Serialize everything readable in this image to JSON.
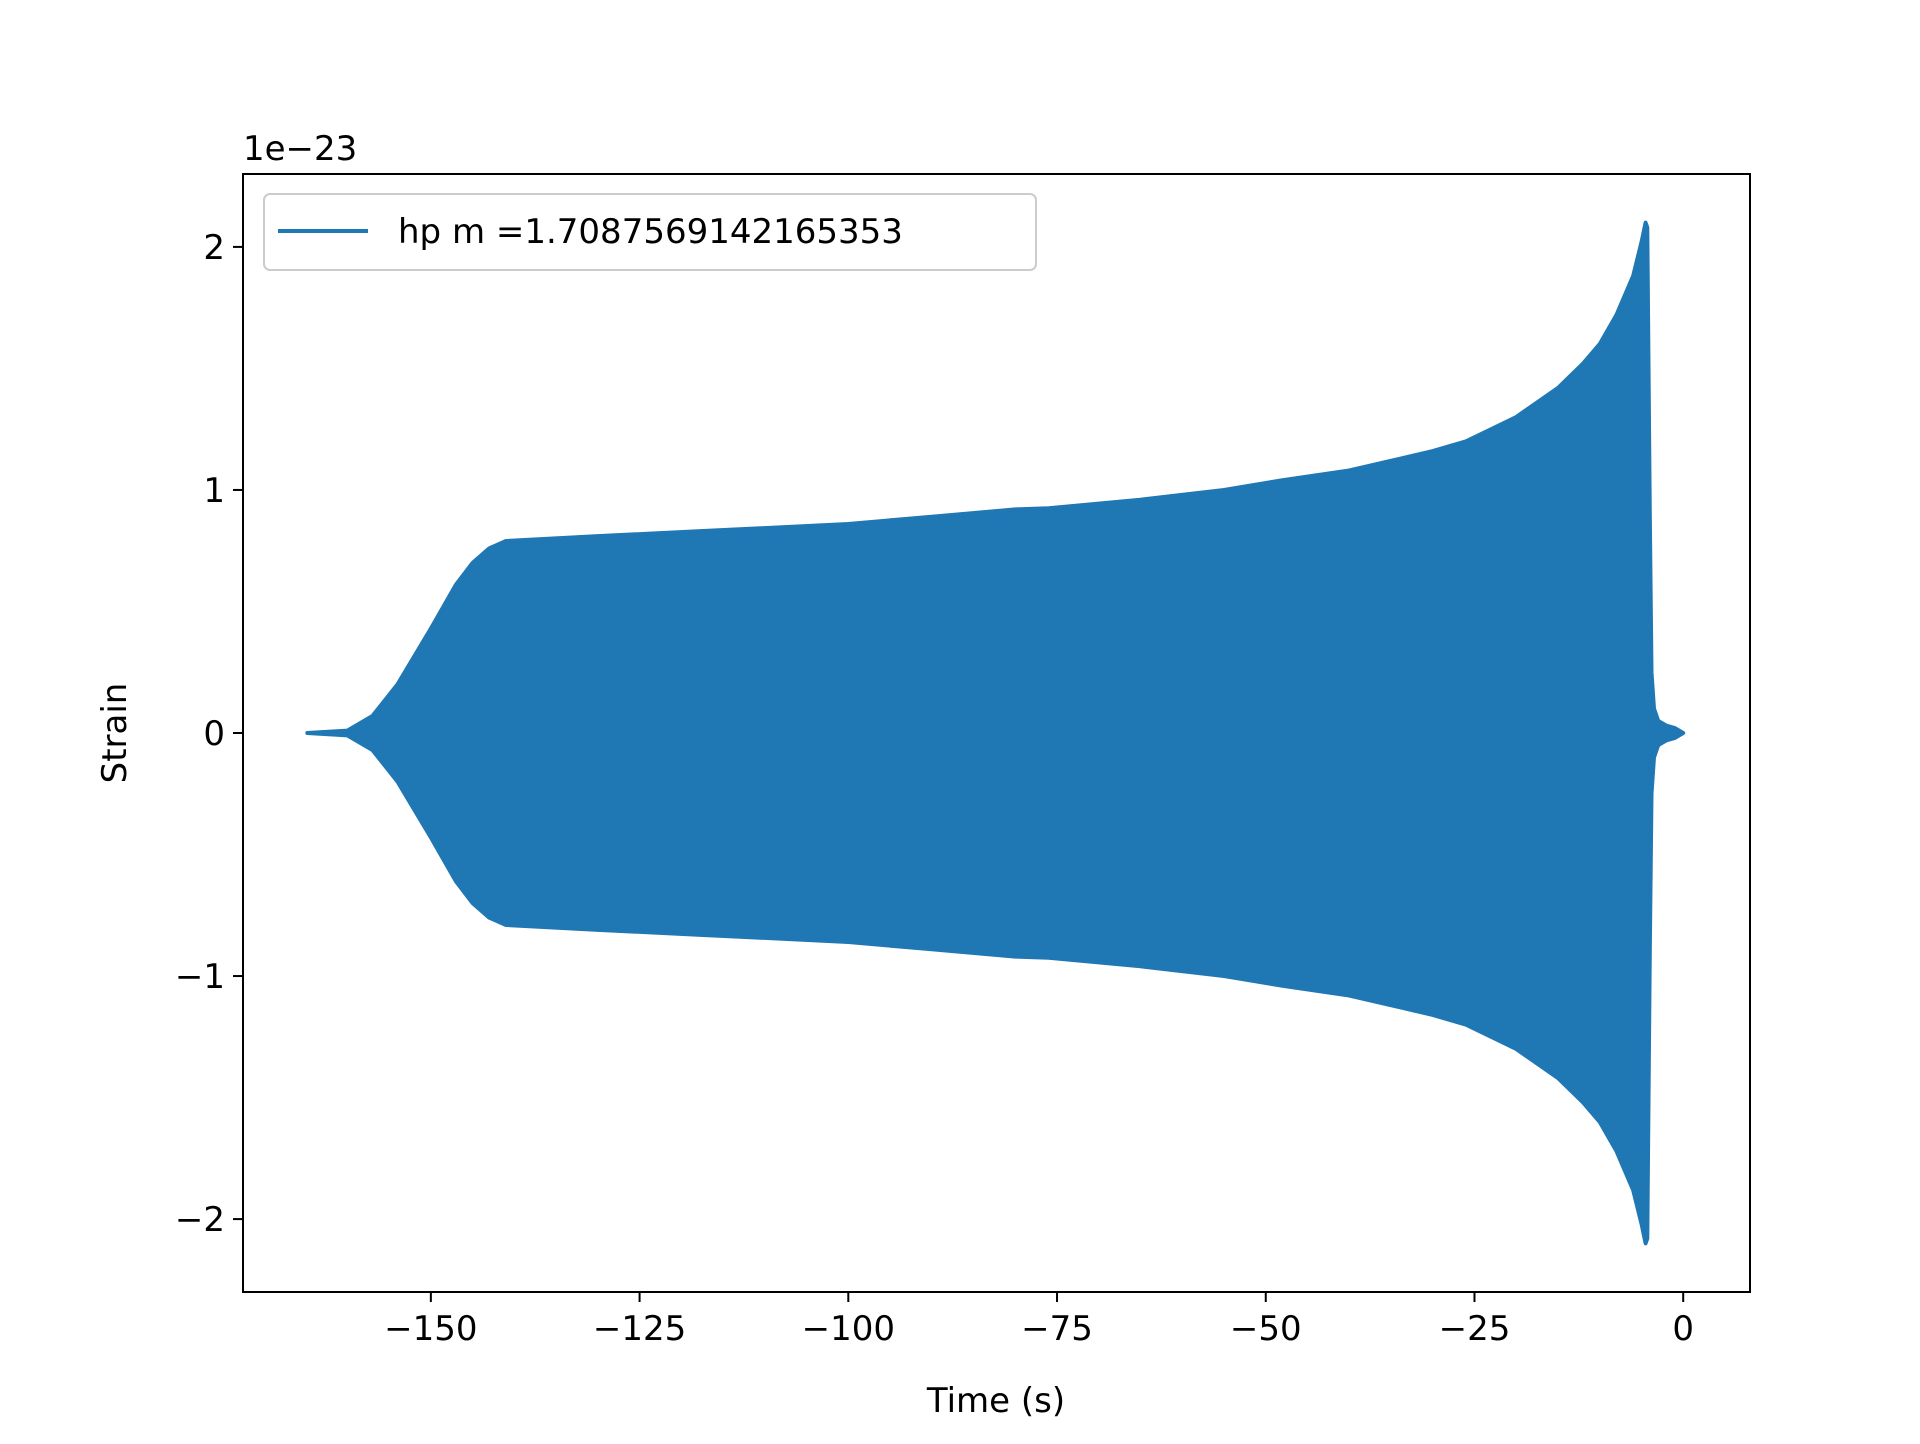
{
  "chart_data": {
    "type": "line",
    "title": "",
    "xlabel": "Time (s)",
    "ylabel": "Strain",
    "offset_text": "1e−23",
    "y_scale": 1e-23,
    "xlim": [
      -172.5,
      8
    ],
    "ylim": [
      -2.3,
      2.3
    ],
    "x_ticks": [
      -150,
      -125,
      -100,
      -75,
      -50,
      -25,
      0
    ],
    "x_tick_labels": [
      "−150",
      "−125",
      "−100",
      "−75",
      "−50",
      "−25",
      "0"
    ],
    "y_ticks": [
      -2,
      -1,
      0,
      1,
      2
    ],
    "y_tick_labels": [
      "−2",
      "−1",
      "0",
      "1",
      "2"
    ],
    "grid": false,
    "legend_position": "top-left",
    "series": [
      {
        "name": "hp m =1.7087569142165353",
        "color": "#1f77b4",
        "style": "oscillating",
        "envelope_time": [
          -164.8,
          -160,
          -157,
          -154,
          -150,
          -147,
          -145,
          -143,
          -141,
          -130,
          -118,
          -100,
          -90,
          -80,
          -76,
          -65,
          -55,
          -48,
          -40,
          -30,
          -26,
          -20,
          -15,
          -12,
          -10,
          -8,
          -6,
          -5,
          -4.5,
          -4.3,
          -4.0,
          -3.8,
          -3.5,
          -3,
          -2,
          -1,
          0
        ],
        "envelope_amplitude": [
          0.0,
          0.01,
          0.07,
          0.2,
          0.43,
          0.61,
          0.7,
          0.76,
          0.79,
          0.81,
          0.83,
          0.86,
          0.89,
          0.92,
          0.925,
          0.96,
          1.0,
          1.04,
          1.08,
          1.16,
          1.2,
          1.3,
          1.42,
          1.52,
          1.6,
          1.72,
          1.88,
          2.02,
          2.1,
          2.08,
          0.9,
          0.25,
          0.1,
          0.05,
          0.03,
          0.02,
          0.0
        ]
      }
    ]
  }
}
